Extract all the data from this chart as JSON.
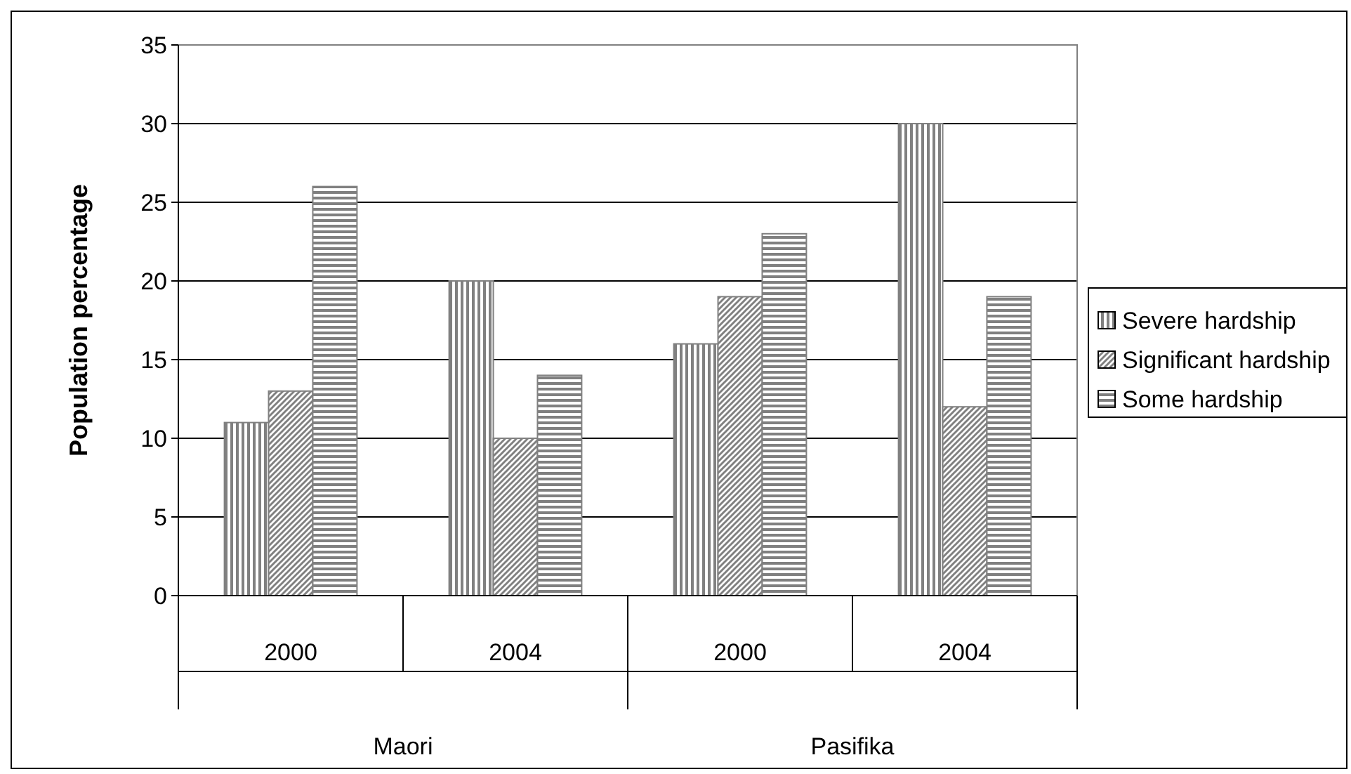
{
  "chart_data": {
    "type": "bar",
    "ylabel": "Population percentage",
    "categories": [
      "2000",
      "2004",
      "2000",
      "2004"
    ],
    "annotations": [
      "Maori",
      "Pasifika"
    ],
    "series": [
      {
        "name": "Severe hardship",
        "color": "#808080",
        "values": [
          11,
          20,
          16,
          30
        ]
      },
      {
        "name": "Significant hardship",
        "color": "#808080",
        "values": [
          13,
          10,
          19,
          12
        ]
      },
      {
        "name": "Some hardship",
        "color": "#808080",
        "values": [
          26,
          14,
          23,
          19
        ]
      }
    ],
    "ylim": [
      0,
      35
    ],
    "yticks": [
      0,
      5,
      10,
      15,
      20,
      25,
      30,
      35
    ],
    "grid": "y",
    "legend": "right"
  }
}
